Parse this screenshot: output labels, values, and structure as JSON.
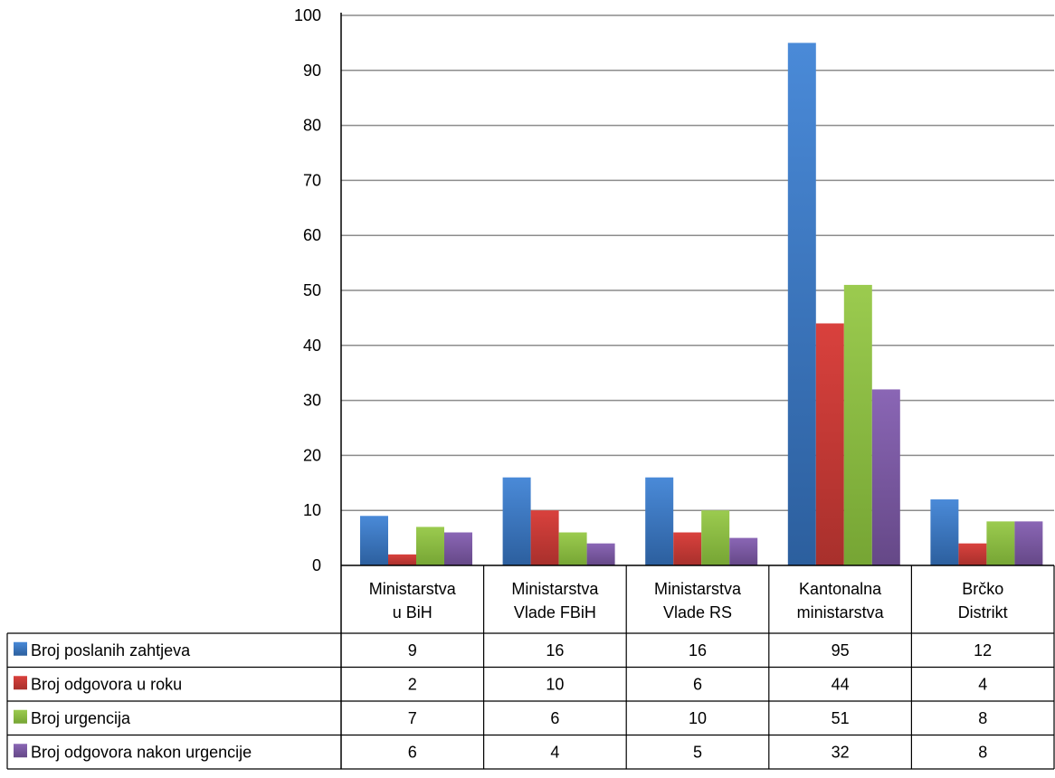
{
  "chart_data": {
    "type": "bar",
    "categories": [
      [
        "Ministarstva",
        "u BiH"
      ],
      [
        "Ministarstva",
        "Vlade FBiH"
      ],
      [
        "Ministarstva",
        "Vlade RS"
      ],
      [
        "Kantonalna",
        "ministarstva"
      ],
      [
        "Brčko",
        "Distrikt"
      ]
    ],
    "series": [
      {
        "name": "Broj poslanih zahtjeva",
        "values": [
          9,
          16,
          16,
          95,
          12
        ]
      },
      {
        "name": "Broj odgovora u roku",
        "values": [
          2,
          10,
          6,
          44,
          4
        ]
      },
      {
        "name": "Broj urgencija",
        "values": [
          7,
          6,
          10,
          51,
          8
        ]
      },
      {
        "name": "Broj odgovora nakon urgencije",
        "values": [
          6,
          4,
          5,
          32,
          8
        ]
      }
    ],
    "ylim": [
      0,
      100
    ],
    "yticks": [
      "0",
      "10",
      "20",
      "30",
      "40",
      "50",
      "60",
      "70",
      "80",
      "90",
      "100"
    ],
    "grid": true,
    "legend": "data-table",
    "colors": {
      "series": [
        {
          "top": "#4A8AD8",
          "bottom": "#2C5F9E"
        },
        {
          "top": "#D9413D",
          "bottom": "#A8302C"
        },
        {
          "top": "#9BCB4F",
          "bottom": "#76A534"
        },
        {
          "top": "#8A66B5",
          "bottom": "#654887"
        }
      ],
      "grid": "#8c8c8c",
      "axis": "#000000"
    }
  }
}
